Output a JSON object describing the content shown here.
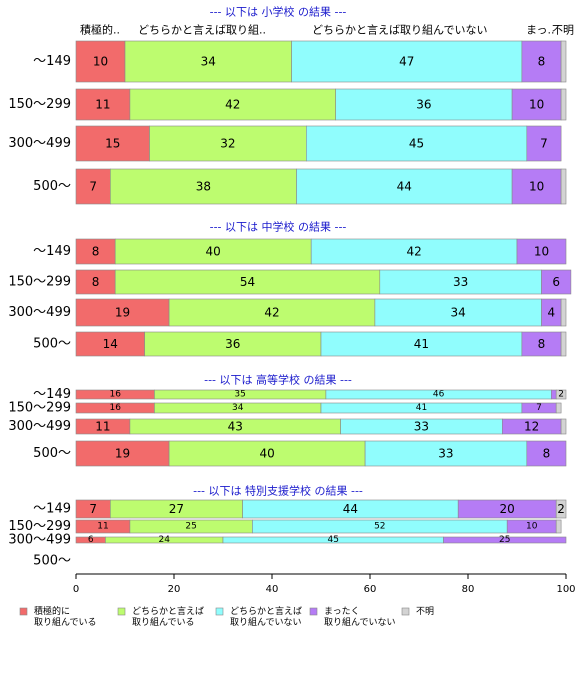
{
  "chart_data": {
    "type": "bar",
    "orientation": "horizontal-stacked-percent",
    "xlim": [
      0,
      100
    ],
    "xticks": [
      "0",
      "20",
      "40",
      "60",
      "80",
      "100"
    ],
    "legend_position": "bottom",
    "series": [
      {
        "name": "積極的に\n取り組んでいる",
        "color": "#f26b6b"
      },
      {
        "name": "どちらかと言えば\n取り組んでいる",
        "color": "#bdfc6f"
      },
      {
        "name": "どちらかと言えば\n取り組んでいない",
        "color": "#90fdfd"
      },
      {
        "name": "まったく\n取り組んでいない",
        "color": "#b57cf5"
      },
      {
        "name": "不明",
        "color": "#d3d3d3"
      }
    ],
    "column_headers": [
      "積極的..",
      "どちらかと言えば取り組..",
      "どちらかと言えば取り組んでいない",
      "まっ..",
      "不明"
    ],
    "panels": [
      {
        "title": "--- 以下は 小学校 の結果 ---",
        "rows": [
          {
            "label": "〜149",
            "values": [
              10,
              34,
              47,
              8,
              1
            ]
          },
          {
            "label": "150〜299",
            "values": [
              11,
              42,
              36,
              10,
              1
            ]
          },
          {
            "label": "300〜499",
            "values": [
              15,
              32,
              45,
              7,
              0
            ]
          },
          {
            "label": "500〜",
            "values": [
              7,
              38,
              44,
              10,
              1
            ]
          }
        ]
      },
      {
        "title": "--- 以下は 中学校 の結果 ---",
        "rows": [
          {
            "label": "〜149",
            "values": [
              8,
              40,
              42,
              10,
              0
            ]
          },
          {
            "label": "150〜299",
            "values": [
              8,
              54,
              33,
              6,
              0
            ]
          },
          {
            "label": "300〜499",
            "values": [
              19,
              42,
              34,
              4,
              1
            ]
          },
          {
            "label": "500〜",
            "values": [
              14,
              36,
              41,
              8,
              1
            ]
          }
        ]
      },
      {
        "title": "--- 以下は 高等学校 の結果 ---",
        "rows": [
          {
            "label": "〜149",
            "values": [
              16,
              35,
              46,
              1,
              2
            ]
          },
          {
            "label": "150〜299",
            "values": [
              16,
              34,
              41,
              7,
              1
            ]
          },
          {
            "label": "300〜499",
            "values": [
              11,
              43,
              33,
              12,
              1
            ]
          },
          {
            "label": "500〜",
            "values": [
              19,
              40,
              33,
              8,
              0
            ]
          }
        ]
      },
      {
        "title": "--- 以下は 特別支援学校 の結果 ---",
        "rows": [
          {
            "label": "〜149",
            "values": [
              7,
              27,
              44,
              20,
              2
            ]
          },
          {
            "label": "150〜299",
            "values": [
              11,
              25,
              52,
              10,
              1
            ]
          },
          {
            "label": "300〜499",
            "values": [
              6,
              24,
              45,
              25,
              0
            ]
          },
          {
            "label": "500〜",
            "values": []
          }
        ]
      }
    ]
  }
}
